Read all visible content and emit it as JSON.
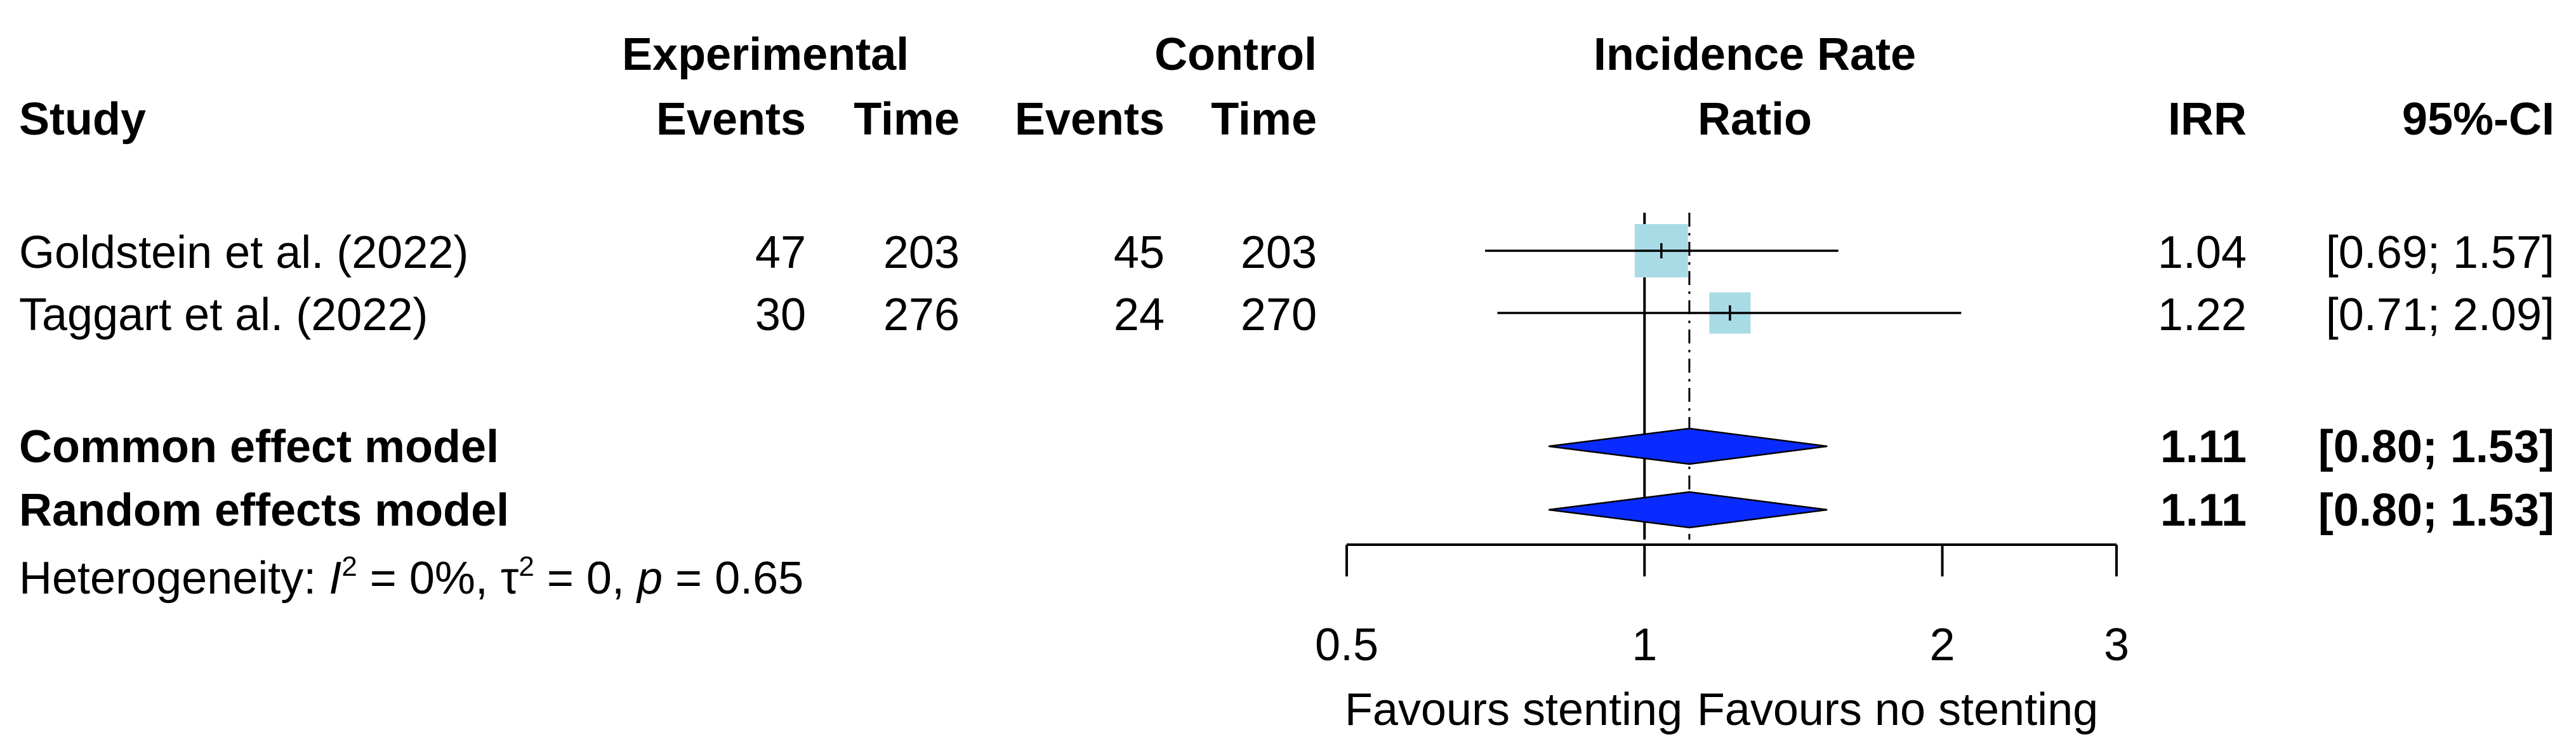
{
  "chart_data": {
    "type": "forest",
    "measure": "Incidence Rate Ratio",
    "scale": "log",
    "headers": {
      "study": "Study",
      "experimental": "Experimental",
      "control": "Control",
      "events": "Events",
      "time": "Time",
      "measure_line1": "Incidence Rate",
      "measure_line2": "Ratio",
      "irr": "IRR",
      "ci": "95%-CI"
    },
    "studies": [
      {
        "name": "Goldstein et al. (2022)",
        "exp_events": "47",
        "exp_time": "203",
        "ctrl_events": "45",
        "ctrl_time": "203",
        "irr": 1.04,
        "lower": 0.69,
        "upper": 1.57,
        "irr_label": "1.04",
        "ci_label": "[0.69; 1.57]",
        "weight": 1.0
      },
      {
        "name": "Taggart et al. (2022)",
        "exp_events": "30",
        "exp_time": "276",
        "ctrl_events": "24",
        "ctrl_time": "270",
        "irr": 1.22,
        "lower": 0.71,
        "upper": 2.09,
        "irr_label": "1.22",
        "ci_label": "[0.71; 2.09]",
        "weight": 0.6
      }
    ],
    "pooled": [
      {
        "name": "Common effect model",
        "irr": 1.11,
        "lower": 0.8,
        "upper": 1.53,
        "irr_label": "1.11",
        "ci_label": "[0.80; 1.53]"
      },
      {
        "name": "Random effects model",
        "irr": 1.11,
        "lower": 0.8,
        "upper": 1.53,
        "irr_label": "1.11",
        "ci_label": "[0.80; 1.53]"
      }
    ],
    "heterogeneity": {
      "prefix": "Heterogeneity: ",
      "i2_symbol": "I",
      "i2_value": " = 0%, ",
      "tau_symbol": "τ",
      "tau_value": " = 0, ",
      "p_symbol": "p",
      "p_value": " = 0.65"
    },
    "x_axis": {
      "ticks": [
        0.5,
        1,
        2,
        3
      ],
      "tick_labels": [
        "0.5",
        "1",
        "2",
        "3"
      ],
      "range": [
        0.5,
        3
      ],
      "label_left": "Favours stenting",
      "label_right": "Favours no stenting"
    },
    "null_value": 1,
    "colors": {
      "study_box": "#a8dbe6",
      "diamond": "#0a2bff",
      "line": "#000000"
    }
  }
}
